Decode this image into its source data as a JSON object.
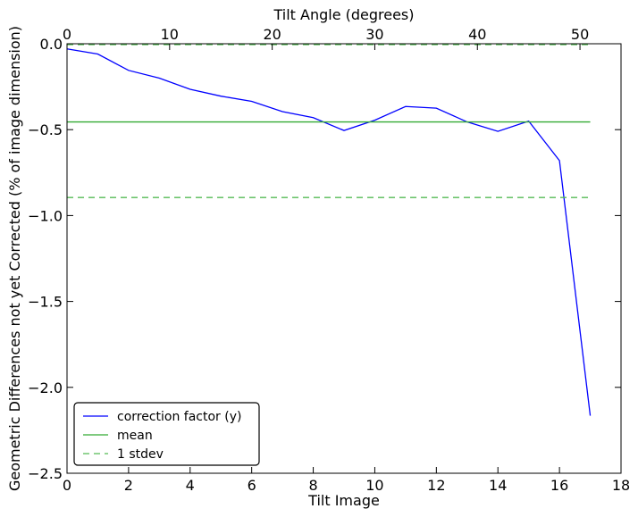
{
  "chart_data": {
    "type": "line",
    "xlabel": "Tilt Image",
    "ylabel": "Geometric Differences not yet Corrected (% of image dimension)",
    "x2label": "Tilt Angle (degrees)",
    "xlim": [
      0,
      18
    ],
    "ylim": [
      -2.5,
      0.0
    ],
    "x2lim": [
      0,
      54
    ],
    "xticks": [
      0,
      2,
      4,
      6,
      8,
      10,
      12,
      14,
      16,
      18
    ],
    "yticks": [
      0.0,
      -0.5,
      -1.0,
      -1.5,
      -2.0,
      -2.5
    ],
    "x2ticks": [
      0,
      10,
      20,
      30,
      40,
      50
    ],
    "xtick_labels": [
      "0",
      "2",
      "4",
      "6",
      "8",
      "10",
      "12",
      "14",
      "16",
      "18"
    ],
    "ytick_labels": [
      "0.0",
      "−0.5",
      "−1.0",
      "−1.5",
      "−2.0",
      "−2.5"
    ],
    "x2tick_labels": [
      "0",
      "10",
      "20",
      "30",
      "40",
      "50"
    ],
    "grid": false,
    "legend_position": "lower-left",
    "series": [
      {
        "name": "correction factor (y)",
        "style": "solid",
        "color": "#0000ff",
        "x": [
          0,
          1,
          2,
          3,
          4,
          5,
          6,
          7,
          8,
          9,
          10,
          11,
          12,
          13,
          14,
          15,
          16,
          17
        ],
        "y": [
          -0.03,
          -0.06,
          -0.155,
          -0.2,
          -0.265,
          -0.305,
          -0.335,
          -0.395,
          -0.43,
          -0.505,
          -0.445,
          -0.365,
          -0.375,
          -0.455,
          -0.51,
          -0.45,
          -0.68,
          -2.165
        ]
      },
      {
        "name": "mean",
        "style": "solid",
        "color": "#33aa33",
        "x": [
          0,
          17
        ],
        "y": [
          -0.455,
          -0.455
        ]
      },
      {
        "name": "1 stdev",
        "style": "dashed",
        "color": "#55bb55",
        "x": [
          0,
          17
        ],
        "y": [
          -0.895,
          -0.895
        ]
      },
      {
        "name": "",
        "style": "dashed",
        "color": "#55bb55",
        "x": [
          0,
          17
        ],
        "y": [
          -0.005,
          -0.005
        ]
      }
    ],
    "legend": [
      "correction factor (y)",
      "mean",
      "1 stdev"
    ]
  }
}
